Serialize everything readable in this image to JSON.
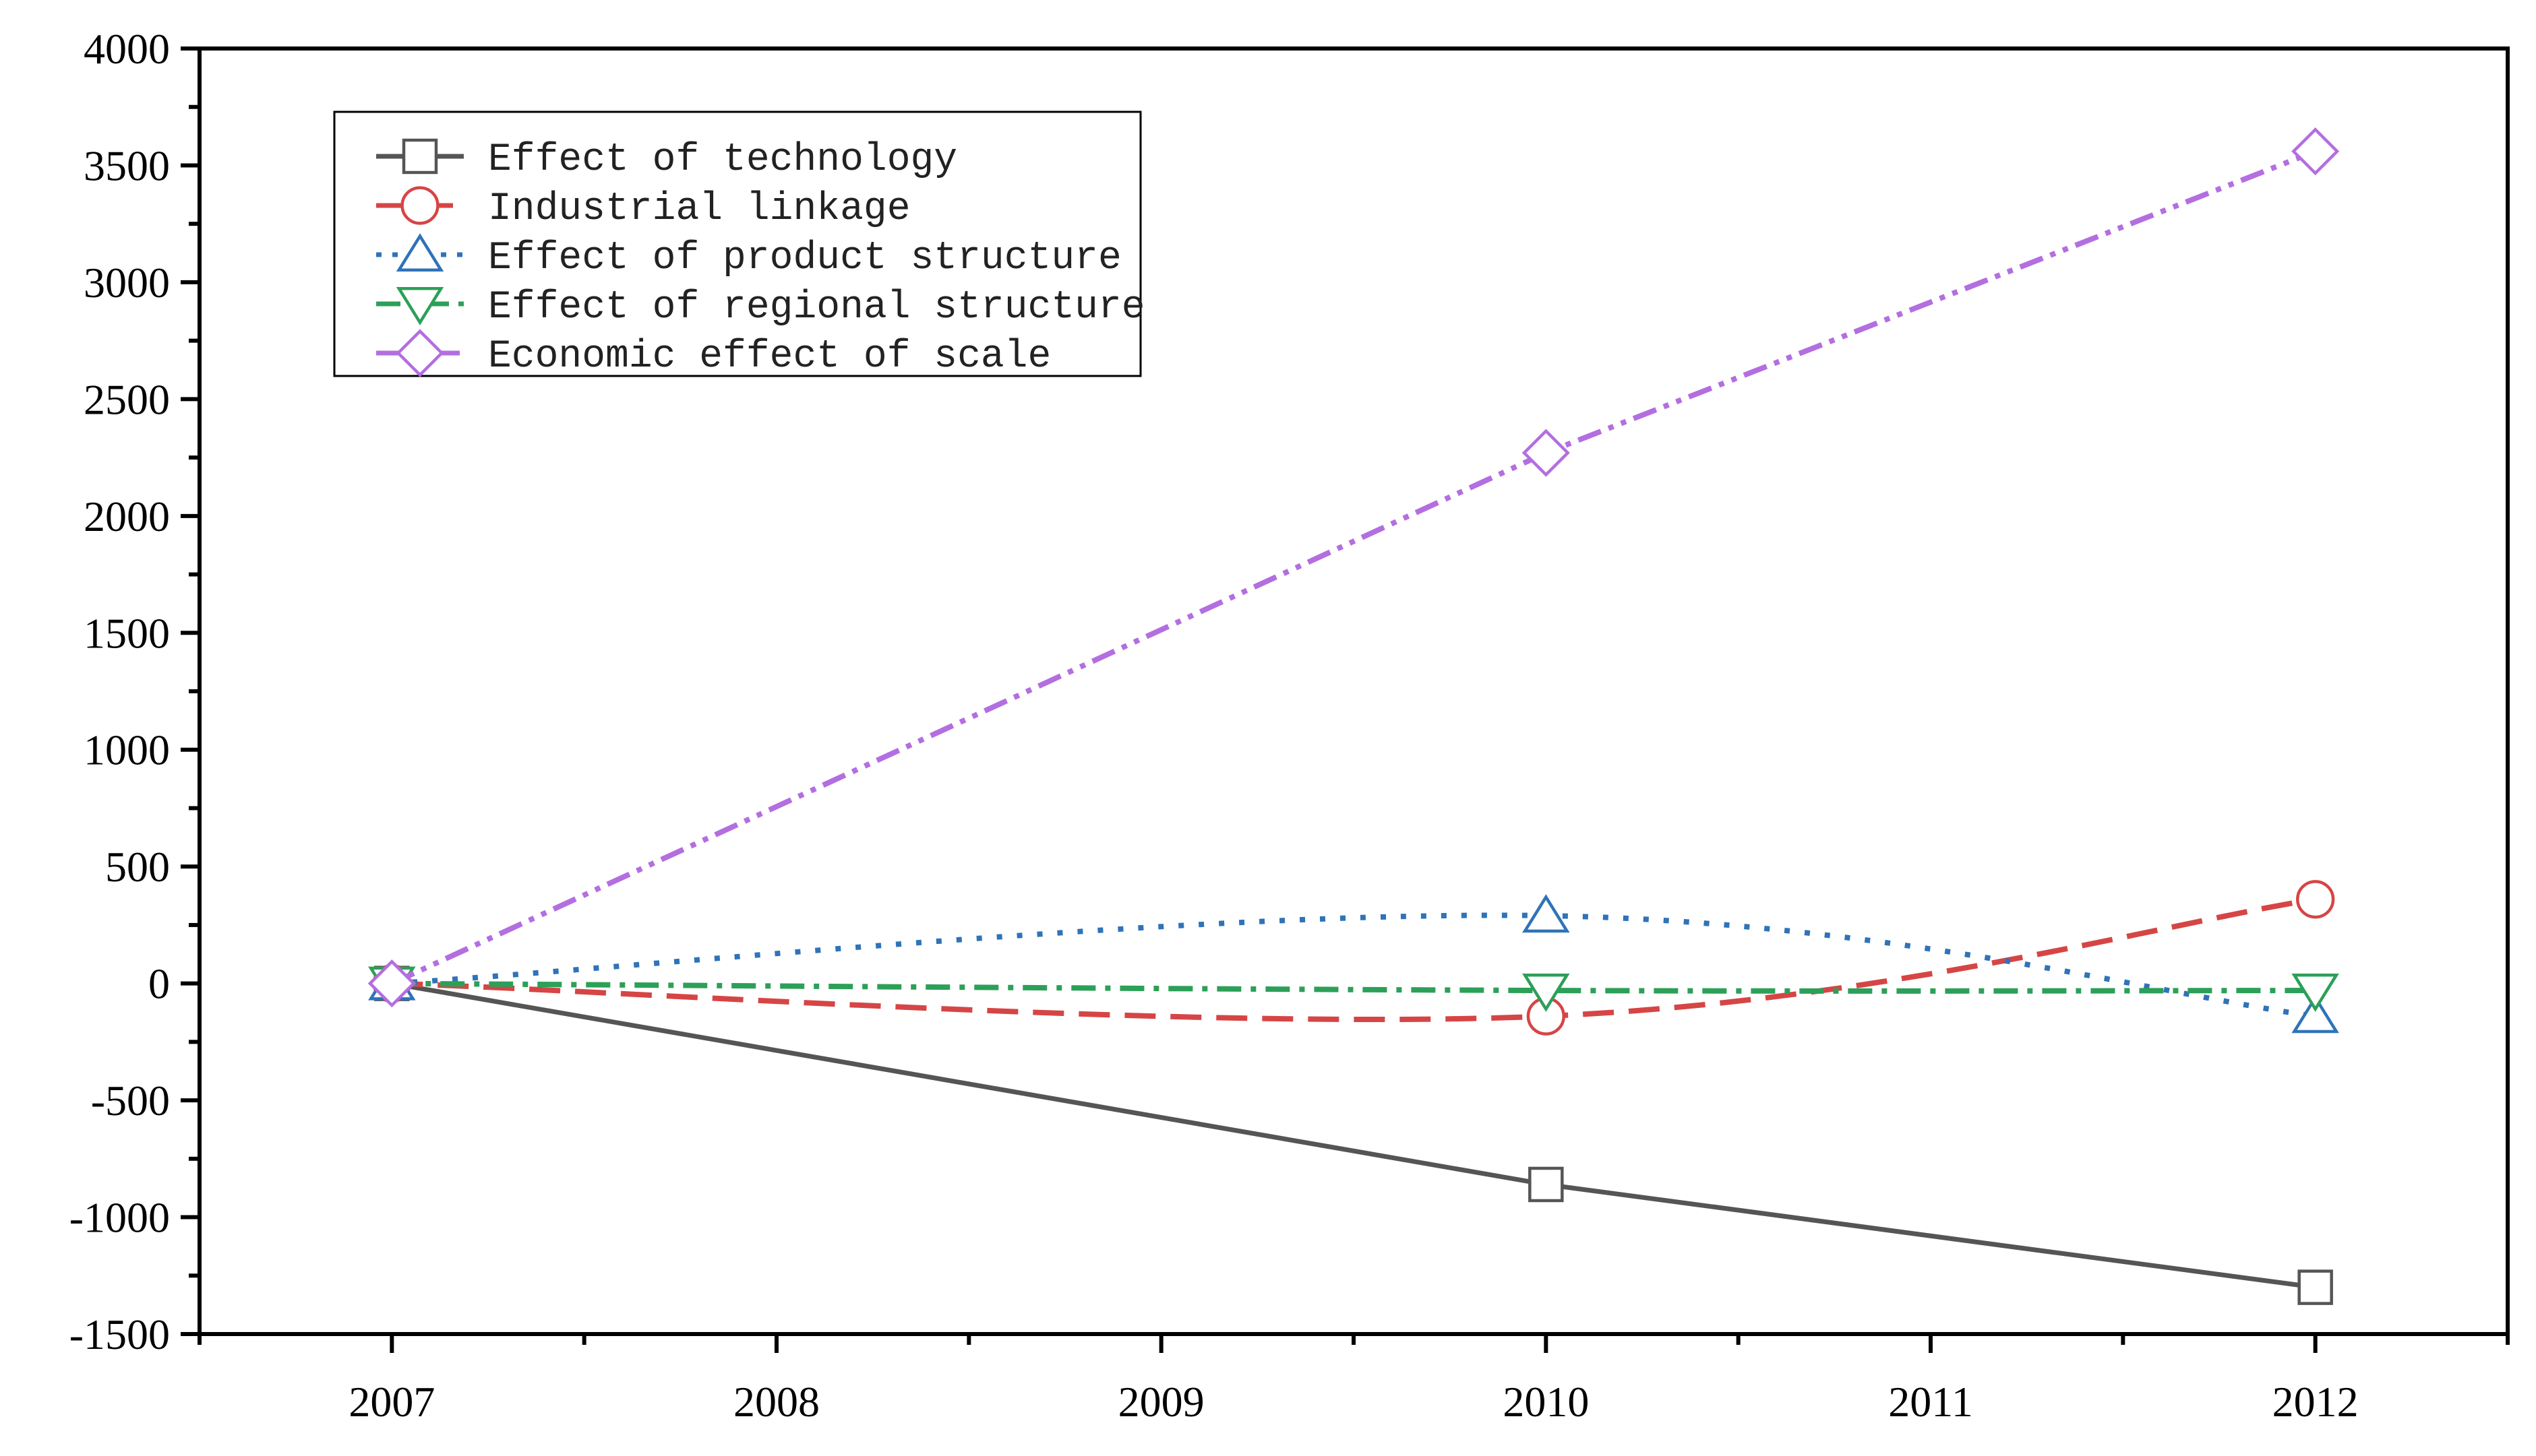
{
  "chart_data": {
    "type": "line",
    "title": "",
    "xlabel": "",
    "ylabel": "",
    "categories": [
      "2007",
      "2008",
      "2009",
      "2010",
      "2011",
      "2012"
    ],
    "x": [
      2007,
      2010,
      2012
    ],
    "xlim": [
      2006.5,
      2012.5
    ],
    "ylim": [
      -1500,
      4000
    ],
    "yticks": [
      -1500,
      -1000,
      -500,
      0,
      500,
      1000,
      1500,
      2000,
      2500,
      3000,
      3500,
      4000
    ],
    "grid": false,
    "legend_position": "top-left",
    "series": [
      {
        "name": "Effect of technology",
        "values": [
          0,
          -860,
          -1300
        ],
        "color": "#555555",
        "marker": "square",
        "line_style": "solid"
      },
      {
        "name": "Industrial linkage",
        "values": [
          0,
          -140,
          360
        ],
        "color": "#d64545",
        "marker": "circle",
        "line_style": "dash"
      },
      {
        "name": "Effect of product structure",
        "values": [
          0,
          290,
          -140
        ],
        "color": "#2f73b8",
        "marker": "triangle-up",
        "line_style": "dot"
      },
      {
        "name": "Effect of regional structure",
        "values": [
          0,
          -30,
          -30
        ],
        "color": "#2ca058",
        "marker": "triangle-down",
        "line_style": "dash-dot"
      },
      {
        "name": "Economic effect of scale",
        "values": [
          0,
          2270,
          3560
        ],
        "color": "#b36ee0",
        "marker": "diamond",
        "line_style": "dash-dot-dot"
      }
    ]
  }
}
